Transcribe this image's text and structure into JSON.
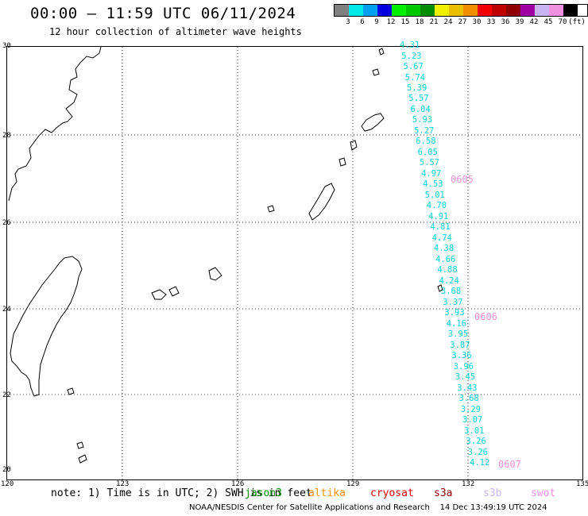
{
  "header": {
    "title": "00:00 — 11:59 UTC 06/11/2024",
    "subtitle": "12 hour collection of altimeter wave heights"
  },
  "colorbar": {
    "unit": "(ft)",
    "colors": [
      "#808080",
      "#00e8e8",
      "#00a0f0",
      "#0000e0",
      "#00f000",
      "#00c800",
      "#008c00",
      "#f0f000",
      "#e8c000",
      "#f09000",
      "#f00000",
      "#c00000",
      "#900000",
      "#a000a0",
      "#c8b4f0",
      "#f090e0",
      "#000000"
    ],
    "labels": [
      "3",
      "6",
      "9",
      "12",
      "15",
      "18",
      "21",
      "24",
      "27",
      "30",
      "33",
      "36",
      "39",
      "42",
      "45",
      "70"
    ]
  },
  "axes": {
    "lon_labels": [
      "120",
      "123",
      "126",
      "129",
      "132",
      "135"
    ],
    "lat_labels": [
      "30",
      "28",
      "26",
      "24",
      "22",
      "20"
    ]
  },
  "track": {
    "values": [
      "4.31",
      "5.23",
      "5.67",
      "5.74",
      "5.39",
      "5.57",
      "6.04",
      "5.93",
      "5.27",
      "6.58",
      "6.05",
      "5.57",
      "4.97",
      "4.53",
      "5.01",
      "4.70",
      "4.91",
      "4.81",
      "4.74",
      "4.38",
      "4.66",
      "4.88",
      "4.24",
      "3.68",
      "3.37",
      "3.93",
      "4.16",
      "3.95",
      "3.87",
      "3.36",
      "3.96",
      "3.45",
      "3.43",
      "3.68",
      "3.29",
      "3.07",
      "3.01",
      "3.26",
      "3.26",
      "4.12"
    ],
    "day_labels": [
      "0605",
      "0606",
      "0607"
    ]
  },
  "footer": {
    "note": "note: 1) Time is in UTC; 2) SWH is in feet",
    "satellites": [
      {
        "name": "jason3",
        "color": "#008c00"
      },
      {
        "name": "altika",
        "color": "#f09000"
      },
      {
        "name": "cryosat",
        "color": "#e00000"
      },
      {
        "name": "s3a",
        "color": "#900000"
      },
      {
        "name": "s3b",
        "color": "#c8b4f0"
      },
      {
        "name": "swot",
        "color": "#f090e0"
      }
    ],
    "credit": "NOAA/NESDIS Center for Satellite Applications and Research",
    "generated": "14 Dec 13:49:19 UTC 2024"
  }
}
